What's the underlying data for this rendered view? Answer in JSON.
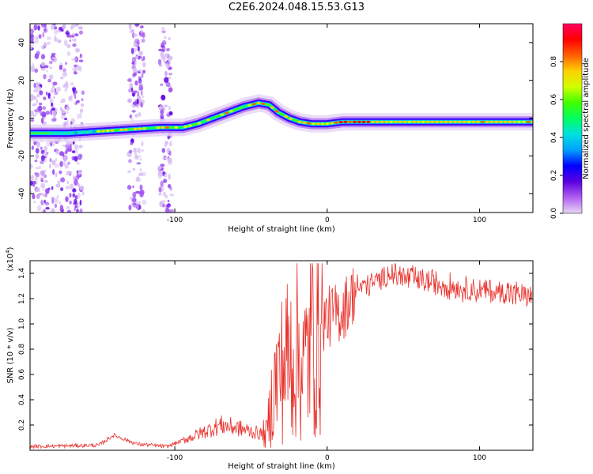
{
  "title": "C2E6.2024.048.15.53.G13",
  "chart_data": [
    {
      "type": "heatmap",
      "xlabel": "Height of straight line (km)",
      "ylabel": "Frequency (Hz)",
      "xlim": [
        -195,
        135
      ],
      "ylim": [
        -50,
        50
      ],
      "xticks": [
        -100,
        0,
        100
      ],
      "yticks": [
        -40,
        -20,
        0,
        20,
        40
      ],
      "colorbar": {
        "label": "Normalized spectral amplitude",
        "range": [
          0,
          1
        ],
        "ticks": [
          "0.0",
          "0.2",
          "0.4",
          "0.6",
          "0.8"
        ],
        "colors": [
          "#e8d6f6",
          "#b060f0",
          "#5a00e0",
          "#0000ff",
          "#00a0ff",
          "#00e0e0",
          "#00ff60",
          "#40ff00",
          "#d0ff00",
          "#ffd000",
          "#ff6000",
          "#ff0000",
          "#ff0060"
        ]
      },
      "ridge": {
        "x": [
          -195,
          -170,
          -150,
          -130,
          -110,
          -95,
          -85,
          -75,
          -65,
          -55,
          -45,
          -38,
          -32,
          -25,
          -18,
          -10,
          0,
          10,
          30,
          60,
          100,
          135
        ],
        "y": [
          -8,
          -8,
          -7,
          -6,
          -5,
          -5,
          -3,
          0,
          3,
          6,
          8,
          7,
          3,
          0,
          -2,
          -3,
          -3,
          -2,
          -2,
          -2,
          -2,
          -2
        ]
      }
    },
    {
      "type": "line",
      "xlabel": "Height of straight line (km)",
      "ylabel": "SNR (10 * v/v)",
      "yscale_label": "(x10",
      "yscale_exp": "4",
      "xlim": [
        -195,
        135
      ],
      "ylim": [
        0,
        1.5
      ],
      "xticks": [
        -100,
        0,
        100
      ],
      "yticks": [
        0.2,
        0.4,
        0.6,
        0.8,
        1.0,
        1.2,
        1.4
      ],
      "line_color": "#e8302a",
      "envelope": {
        "x": [
          -195,
          -150,
          -140,
          -125,
          -105,
          -90,
          -80,
          -70,
          -60,
          -50,
          -40,
          -35,
          -28,
          -20,
          -15,
          -10,
          -5,
          0,
          10,
          20,
          30,
          40,
          55,
          70,
          90,
          110,
          135
        ],
        "y": [
          0.03,
          0.04,
          0.12,
          0.05,
          0.03,
          0.1,
          0.15,
          0.2,
          0.18,
          0.15,
          0.12,
          0.5,
          0.7,
          0.8,
          0.65,
          0.95,
          1.0,
          1.05,
          1.1,
          1.3,
          1.35,
          1.42,
          1.38,
          1.35,
          1.3,
          1.28,
          1.25
        ]
      }
    }
  ]
}
